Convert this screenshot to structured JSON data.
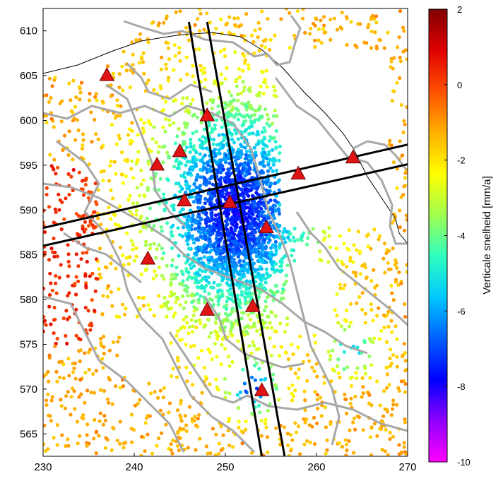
{
  "map": {
    "x_axis": {
      "min": 230,
      "max": 270,
      "ticks": [
        230,
        240,
        250,
        260,
        270
      ]
    },
    "y_axis": {
      "min": 562.5,
      "max": 612.5,
      "ticks": [
        565,
        570,
        575,
        580,
        585,
        590,
        595,
        600,
        605,
        610
      ]
    },
    "colorbar": {
      "label": "Verticale snelheid [mm/a]",
      "min": -10,
      "max": 2,
      "ticks": [
        2,
        0,
        -2,
        -4,
        -6,
        -8,
        -10
      ],
      "colormap": [
        "#ff00ff",
        "#8f00ff",
        "#0000ff",
        "#0060ff",
        "#00c8ff",
        "#30ffc0",
        "#a0ff50",
        "#ffff00",
        "#ffb000",
        "#ff5000",
        "#e00000",
        "#800000"
      ]
    },
    "stations": [
      {
        "x": 237.0,
        "y": 605.0
      },
      {
        "x": 248.0,
        "y": 600.5
      },
      {
        "x": 242.5,
        "y": 595.0
      },
      {
        "x": 245.0,
        "y": 596.5
      },
      {
        "x": 245.5,
        "y": 591.0
      },
      {
        "x": 250.5,
        "y": 590.8
      },
      {
        "x": 254.5,
        "y": 588.0
      },
      {
        "x": 258.0,
        "y": 594.0
      },
      {
        "x": 264.0,
        "y": 595.8
      },
      {
        "x": 241.5,
        "y": 584.5
      },
      {
        "x": 248.0,
        "y": 578.8
      },
      {
        "x": 253.0,
        "y": 579.2
      },
      {
        "x": 254.0,
        "y": 569.8
      }
    ],
    "profile_strips": [
      {
        "from": [
          246.0,
          611.0
        ],
        "to": [
          254.0,
          562.5
        ]
      },
      {
        "from": [
          248.0,
          611.0
        ],
        "to": [
          256.5,
          562.5
        ]
      },
      {
        "from": [
          230.0,
          588.0
        ],
        "to": [
          270.0,
          597.3
        ]
      },
      {
        "from": [
          230.0,
          586.0
        ],
        "to": [
          270.0,
          595.1
        ]
      }
    ]
  }
}
